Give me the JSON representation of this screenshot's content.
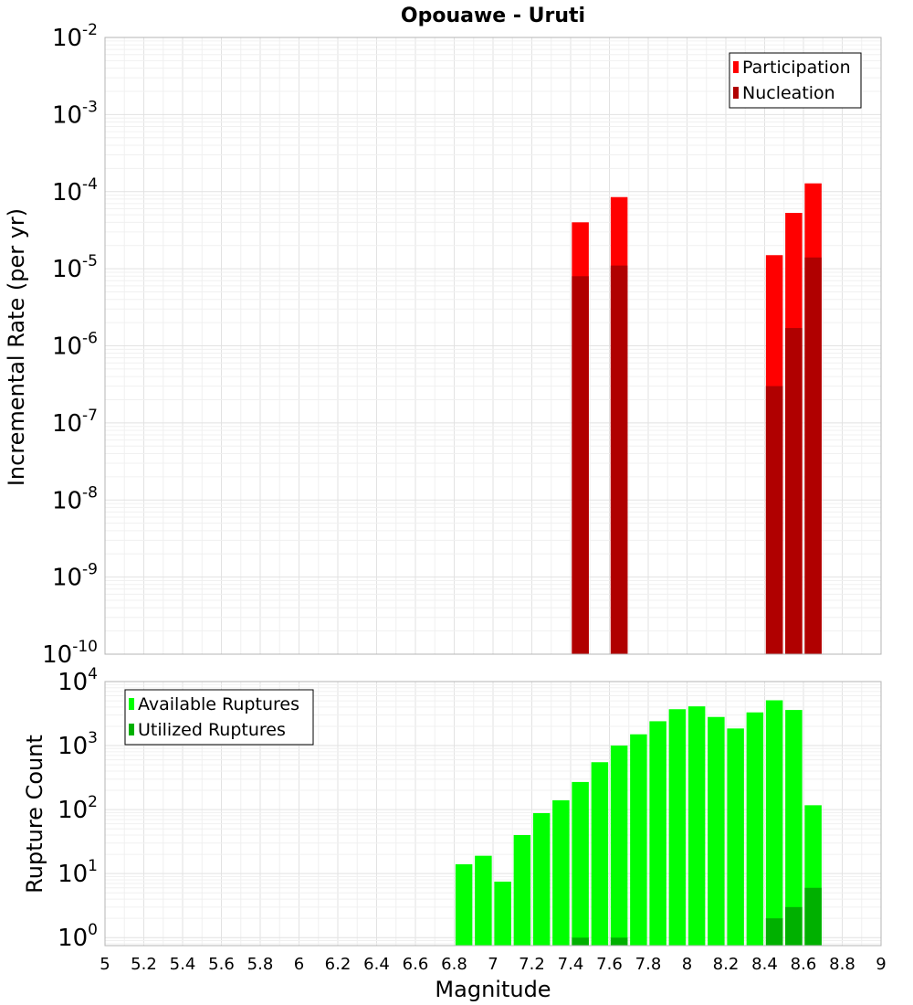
{
  "title": "Opouawe - Uruti",
  "colors": {
    "participation": "#ff0000",
    "nucleation": "#b00000",
    "available": "#00ff00",
    "utilized": "#00b000"
  },
  "chart_data": [
    {
      "type": "bar",
      "name": "rate-panel",
      "ylabel": "Incremental Rate (per yr)",
      "yscale": "log",
      "ylim": [
        1e-10,
        0.01
      ],
      "xlim": [
        5,
        9
      ],
      "grid": true,
      "legend_position": "top-right",
      "series": [
        {
          "name": "Participation",
          "color_key": "participation",
          "x": [
            7.45,
            7.65,
            8.45,
            8.55,
            8.65
          ],
          "values": [
            4e-05,
            8.5e-05,
            1.5e-05,
            5.3e-05,
            0.000128
          ]
        },
        {
          "name": "Nucleation",
          "color_key": "nucleation",
          "x": [
            7.45,
            7.65,
            8.45,
            8.55,
            8.65
          ],
          "values": [
            8e-06,
            1.1e-05,
            3e-07,
            1.7e-06,
            1.4e-05
          ]
        }
      ]
    },
    {
      "type": "bar",
      "name": "count-panel",
      "xlabel": "Magnitude",
      "ylabel": "Rupture Count",
      "yscale": "log",
      "ylim": [
        0.75,
        10000
      ],
      "xlim": [
        5,
        9
      ],
      "grid": true,
      "legend_position": "top-left",
      "series": [
        {
          "name": "Available Ruptures",
          "color_key": "available",
          "x": [
            6.85,
            6.95,
            7.05,
            7.15,
            7.25,
            7.35,
            7.45,
            7.55,
            7.65,
            7.75,
            7.85,
            7.95,
            8.05,
            8.15,
            8.25,
            8.35,
            8.45,
            8.55,
            8.65
          ],
          "values": [
            14,
            19,
            7.5,
            40,
            88,
            140,
            270,
            550,
            1000,
            1500,
            2400,
            3700,
            4100,
            2800,
            1850,
            3300,
            5100,
            3600,
            117
          ]
        },
        {
          "name": "Utilized Ruptures",
          "color_key": "utilized",
          "x": [
            7.45,
            7.65,
            8.45,
            8.55,
            8.65
          ],
          "values": [
            1,
            1,
            2,
            3,
            6
          ]
        }
      ]
    }
  ],
  "x_ticks": [
    "5",
    "5.2",
    "5.4",
    "5.6",
    "5.8",
    "6",
    "6.2",
    "6.4",
    "6.6",
    "6.8",
    "7",
    "7.2",
    "7.4",
    "7.6",
    "7.8",
    "8",
    "8.2",
    "8.4",
    "8.6",
    "8.8",
    "9"
  ],
  "rate_y_exponents": [
    "-10",
    "-9",
    "-8",
    "-7",
    "-6",
    "-5",
    "-4",
    "-3",
    "-2"
  ],
  "count_y_exponents": [
    "0",
    "1",
    "2",
    "3",
    "4"
  ],
  "tick_base": "10"
}
